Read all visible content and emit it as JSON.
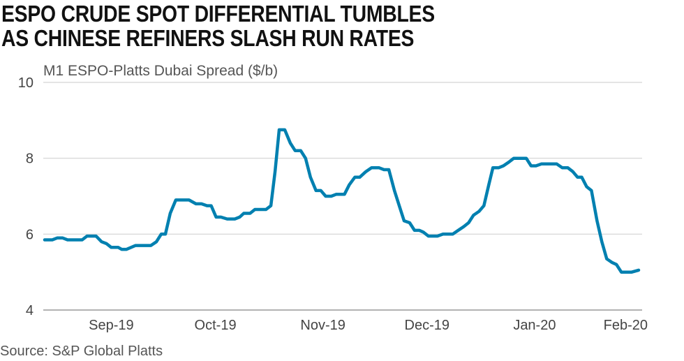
{
  "chart_data": {
    "type": "line",
    "title_lines": [
      "ESPO CRUDE SPOT DIFFERENTIAL TUMBLES",
      "AS CHINESE REFINERS SLASH RUN RATES"
    ],
    "subtitle": "M1 ESPO-Platts Dubai Spread ($/b)",
    "source": "Source: S&P Global Platts",
    "xlabel": "",
    "ylabel": "M1 ESPO-Platts Dubai Spread ($/b)",
    "x_unit": "days since 2019-09-01",
    "xlim": [
      -19.6,
      153
    ],
    "ylim": [
      4,
      10
    ],
    "grid": true,
    "y_ticks": [
      {
        "value": 4,
        "label": "4"
      },
      {
        "value": 6,
        "label": "6"
      },
      {
        "value": 8,
        "label": "8"
      },
      {
        "value": 10,
        "label": "10"
      }
    ],
    "x_ticks": [
      {
        "value": 0,
        "label": "Sep-19"
      },
      {
        "value": 30,
        "label": "Oct-19"
      },
      {
        "value": 61,
        "label": "Nov-19"
      },
      {
        "value": 91,
        "label": "Dec-19"
      },
      {
        "value": 122,
        "label": "Jan-20"
      },
      {
        "value": 153,
        "label": "Feb-20"
      }
    ],
    "series": [
      {
        "name": "M1 ESPO-Platts Dubai Spread",
        "color": "#0080B0",
        "x": [
          -19.2,
          -17,
          -15.6,
          -14,
          -12.6,
          -8.4,
          -7,
          -4.4,
          -2.8,
          -1.4,
          0,
          2,
          3,
          4.4,
          7,
          11.4,
          13,
          14.4,
          15.6,
          17,
          18.6,
          22.4,
          24.4,
          26,
          27.6,
          28.8,
          30.2,
          31.6,
          33.4,
          35.6,
          37,
          38.2,
          40,
          41.4,
          44.6,
          46,
          47.2,
          48.4,
          50,
          51.6,
          53,
          54.6,
          56,
          57.4,
          59,
          60.4,
          61.8,
          63.4,
          64.8,
          67.2,
          68.6,
          70.2,
          71.6,
          73.4,
          75,
          77.2,
          78.6,
          80,
          81.6,
          83,
          84.4,
          86,
          87.4,
          88.8,
          90,
          91.4,
          94,
          95.6,
          98.4,
          100,
          101.6,
          103,
          104.4,
          106,
          107.4,
          108.8,
          110,
          111.6,
          113,
          114.6,
          116,
          119.6,
          121,
          122.4,
          124,
          128.4,
          130,
          131.6,
          133,
          134.4,
          135.6,
          137,
          138.4,
          140,
          141.4,
          142.8,
          144.4,
          145.6,
          147,
          150,
          152
        ],
        "y": [
          5.85,
          5.85,
          5.9,
          5.9,
          5.85,
          5.85,
          5.95,
          5.95,
          5.8,
          5.75,
          5.65,
          5.65,
          5.6,
          5.6,
          5.7,
          5.7,
          5.8,
          6.0,
          6.0,
          6.55,
          6.9,
          6.9,
          6.8,
          6.8,
          6.75,
          6.75,
          6.45,
          6.45,
          6.4,
          6.4,
          6.45,
          6.55,
          6.55,
          6.65,
          6.65,
          6.75,
          7.65,
          8.75,
          8.75,
          8.4,
          8.2,
          8.2,
          8.0,
          7.5,
          7.15,
          7.15,
          7.0,
          7.0,
          7.05,
          7.05,
          7.3,
          7.5,
          7.5,
          7.65,
          7.75,
          7.75,
          7.7,
          7.7,
          7.15,
          6.75,
          6.35,
          6.3,
          6.1,
          6.1,
          6.05,
          5.95,
          5.95,
          6.0,
          6.0,
          6.1,
          6.2,
          6.3,
          6.5,
          6.6,
          6.75,
          7.3,
          7.75,
          7.75,
          7.8,
          7.9,
          8.0,
          8.0,
          7.8,
          7.8,
          7.85,
          7.85,
          7.75,
          7.75,
          7.65,
          7.5,
          7.5,
          7.25,
          7.15,
          6.35,
          5.8,
          5.35,
          5.25,
          5.2,
          5.0,
          5.0,
          5.05
        ]
      }
    ]
  }
}
